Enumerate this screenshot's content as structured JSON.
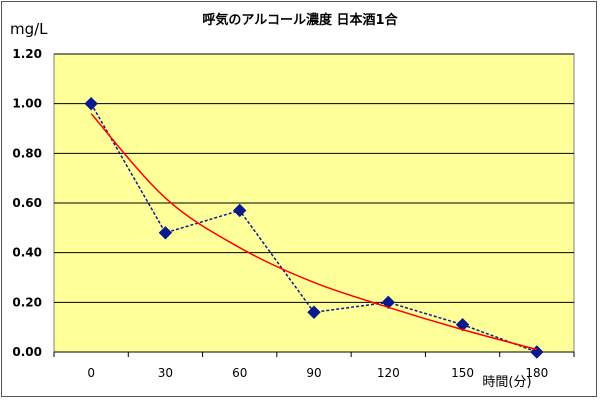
{
  "chart_data": {
    "type": "line",
    "title": "呼気のアルコール濃度 日本酒1合",
    "ylabel": "mg/L",
    "xlabel": "時間(分)",
    "categories": [
      "0",
      "30",
      "60",
      "90",
      "120",
      "150",
      "180"
    ],
    "ylim": [
      0,
      1.2
    ],
    "yticks": [
      "0.00",
      "0.20",
      "0.40",
      "0.60",
      "0.80",
      "1.00",
      "1.20"
    ],
    "series": [
      {
        "values": [
          1.0,
          0.48,
          0.57,
          0.16,
          0.2,
          0.11,
          0.0
        ],
        "color": "#0a1a8c",
        "marker": "diamond",
        "style": "dashed"
      },
      {
        "values": [
          0.96,
          0.62,
          0.42,
          0.28,
          0.18,
          0.09,
          0.01
        ],
        "color": "#ff0000",
        "style": "smooth-trendline"
      }
    ],
    "plot_background": "#ffff99",
    "grid": true
  }
}
